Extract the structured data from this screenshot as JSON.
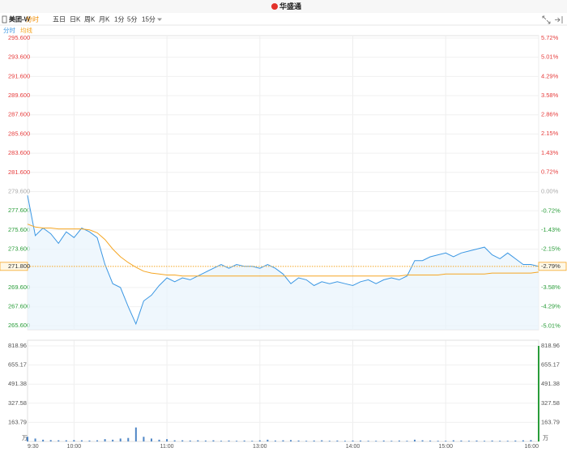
{
  "header": {
    "logo": "华盛通"
  },
  "toolbar": {
    "symbol": "美团-W",
    "tabs": [
      "分时",
      "五日",
      "日K",
      "周K",
      "月K",
      "1分",
      "5分",
      "15分"
    ],
    "active_tab": 0
  },
  "chart_data": [
    {
      "type": "line",
      "x": [
        "9:30",
        "9:35",
        "9:40",
        "9:45",
        "9:50",
        "9:55",
        "10:00",
        "10:05",
        "10:10",
        "10:15",
        "10:20",
        "10:25",
        "10:30",
        "10:35",
        "10:40",
        "10:45",
        "10:50",
        "10:55",
        "11:00",
        "11:05",
        "11:10",
        "11:15",
        "11:20",
        "11:25",
        "11:30",
        "11:35",
        "11:40",
        "11:45",
        "11:50",
        "11:55",
        "12:00",
        "13:05",
        "13:10",
        "13:15",
        "13:20",
        "13:25",
        "13:30",
        "13:35",
        "13:40",
        "13:45",
        "13:50",
        "13:55",
        "14:00",
        "14:05",
        "14:10",
        "14:15",
        "14:20",
        "14:25",
        "14:30",
        "14:35",
        "14:40",
        "14:45",
        "14:50",
        "14:55",
        "15:00",
        "15:05",
        "15:10",
        "15:15",
        "15:20",
        "15:25",
        "15:30",
        "15:35",
        "15:40",
        "15:45",
        "15:50",
        "15:55",
        "16:00"
      ],
      "series": [
        {
          "name": "分时",
          "color": "#3b97e3",
          "values": [
            279.2,
            275.0,
            275.8,
            275.2,
            274.2,
            275.4,
            274.8,
            275.8,
            275.4,
            274.8,
            272.0,
            270.0,
            269.6,
            267.6,
            265.8,
            268.2,
            268.8,
            269.8,
            270.6,
            270.2,
            270.6,
            270.4,
            270.8,
            271.2,
            271.6,
            272.0,
            271.6,
            272.0,
            271.8,
            271.8,
            271.6,
            272.0,
            271.6,
            271.0,
            270.0,
            270.6,
            270.4,
            269.8,
            270.2,
            270.0,
            270.2,
            270.0,
            269.8,
            270.2,
            270.4,
            270.0,
            270.4,
            270.6,
            270.4,
            270.8,
            272.4,
            272.4,
            272.8,
            273.0,
            273.2,
            272.8,
            273.2,
            273.4,
            273.6,
            273.8,
            273.0,
            272.6,
            273.2,
            272.6,
            272.0,
            272.0,
            271.8
          ]
        },
        {
          "name": "均线",
          "color": "#f5a623",
          "values": [
            276.2,
            275.9,
            275.8,
            275.8,
            275.7,
            275.7,
            275.7,
            275.7,
            275.6,
            275.3,
            274.6,
            273.6,
            272.8,
            272.2,
            271.7,
            271.3,
            271.1,
            271.0,
            270.9,
            270.9,
            270.8,
            270.8,
            270.8,
            270.8,
            270.8,
            270.8,
            270.8,
            270.8,
            270.8,
            270.8,
            270.8,
            270.8,
            270.8,
            270.8,
            270.8,
            270.8,
            270.8,
            270.8,
            270.8,
            270.8,
            270.8,
            270.8,
            270.8,
            270.8,
            270.8,
            270.8,
            270.8,
            270.8,
            270.8,
            270.9,
            270.9,
            270.9,
            270.9,
            270.9,
            271.0,
            271.0,
            271.0,
            271.0,
            271.0,
            271.0,
            271.1,
            271.1,
            271.1,
            271.1,
            271.1,
            271.1,
            271.2
          ]
        }
      ],
      "xticks": [
        "9:30",
        "10:00",
        "11:00",
        "13:00",
        "14:00",
        "15:00",
        "16:00"
      ],
      "ylim": [
        265.2,
        295.85
      ],
      "yticks": [
        {
          "value": 295.6,
          "label": "295.600"
        },
        {
          "value": 293.6,
          "label": "293.600"
        },
        {
          "value": 291.6,
          "label": "291.600"
        },
        {
          "value": 289.6,
          "label": "289.600"
        },
        {
          "value": 287.6,
          "label": "287.600"
        },
        {
          "value": 285.6,
          "label": "285.600"
        },
        {
          "value": 283.6,
          "label": "283.600"
        },
        {
          "value": 281.6,
          "label": "281.600"
        },
        {
          "value": 279.6,
          "label": "279.600"
        },
        {
          "value": 277.6,
          "label": "277.600"
        },
        {
          "value": 275.6,
          "label": "275.600"
        },
        {
          "value": 273.6,
          "label": "273.600"
        },
        {
          "value": 269.6,
          "label": "269.600"
        },
        {
          "value": 267.6,
          "label": "267.600"
        },
        {
          "value": 265.6,
          "label": "265.600"
        }
      ],
      "y2lim": [
        -5.15,
        5.81
      ],
      "y2ticks": [
        {
          "value": 5.72,
          "label": "5.72%"
        },
        {
          "value": 5.01,
          "label": "5.01%"
        },
        {
          "value": 4.29,
          "label": "4.29%"
        },
        {
          "value": 3.58,
          "label": "3.58%"
        },
        {
          "value": 2.86,
          "label": "2.86%"
        },
        {
          "value": 2.15,
          "label": "2.15%"
        },
        {
          "value": 1.43,
          "label": "1.43%"
        },
        {
          "value": 0.72,
          "label": "0.72%"
        },
        {
          "value": 0,
          "label": "0.00%"
        },
        {
          "value": -0.72,
          "label": "-0.72%"
        },
        {
          "value": -1.43,
          "label": "-1.43%"
        },
        {
          "value": -2.15,
          "label": "-2.15%"
        },
        {
          "value": -3.58,
          "label": "-3.58%"
        },
        {
          "value": -4.29,
          "label": "-4.29%"
        },
        {
          "value": -5.01,
          "label": "-5.01%"
        }
      ],
      "last": {
        "value": 271.8,
        "label": "271.800",
        "pct": {
          "value": -2.79,
          "label": "-2.79%"
        }
      },
      "grid": true,
      "up_color": "#e63c3c",
      "flat_color": "#aaaaaa",
      "down_color": "#2a9d3a"
    },
    {
      "type": "bar",
      "x": [
        "9:30",
        "9:35",
        "9:40",
        "9:45",
        "9:50",
        "9:55",
        "10:00",
        "10:05",
        "10:10",
        "10:15",
        "10:20",
        "10:25",
        "10:30",
        "10:35",
        "10:40",
        "10:45",
        "10:50",
        "10:55",
        "11:00",
        "11:05",
        "11:10",
        "11:15",
        "11:20",
        "11:25",
        "11:30",
        "11:35",
        "11:40",
        "11:45",
        "11:50",
        "11:55",
        "12:00",
        "13:05",
        "13:10",
        "13:15",
        "13:20",
        "13:25",
        "13:30",
        "13:35",
        "13:40",
        "13:45",
        "13:50",
        "13:55",
        "14:00",
        "14:05",
        "14:10",
        "14:15",
        "14:20",
        "14:25",
        "14:30",
        "14:35",
        "14:40",
        "14:45",
        "14:50",
        "14:55",
        "15:00",
        "15:05",
        "15:10",
        "15:15",
        "15:20",
        "15:25",
        "15:30",
        "15:35",
        "15:40",
        "15:45",
        "15:50",
        "15:55",
        "16:00"
      ],
      "values": [
        40,
        25,
        15,
        12,
        10,
        10,
        12,
        10,
        8,
        10,
        20,
        15,
        25,
        30,
        120,
        40,
        25,
        15,
        20,
        10,
        10,
        8,
        10,
        8,
        10,
        6,
        8,
        6,
        8,
        6,
        10,
        15,
        8,
        10,
        12,
        8,
        6,
        8,
        10,
        6,
        8,
        6,
        8,
        8,
        6,
        6,
        8,
        6,
        8,
        6,
        15,
        10,
        8,
        6,
        6,
        10,
        8,
        6,
        8,
        6,
        8,
        6,
        6,
        8,
        10,
        12,
        818.96
      ],
      "color": "#4f86c6",
      "last_color": "#2a9d3a",
      "ylim": [
        0,
        867.5
      ],
      "yticks": [
        818.96,
        655.17,
        491.38,
        327.58,
        163.79
      ],
      "unit": "万",
      "grid": true
    }
  ]
}
